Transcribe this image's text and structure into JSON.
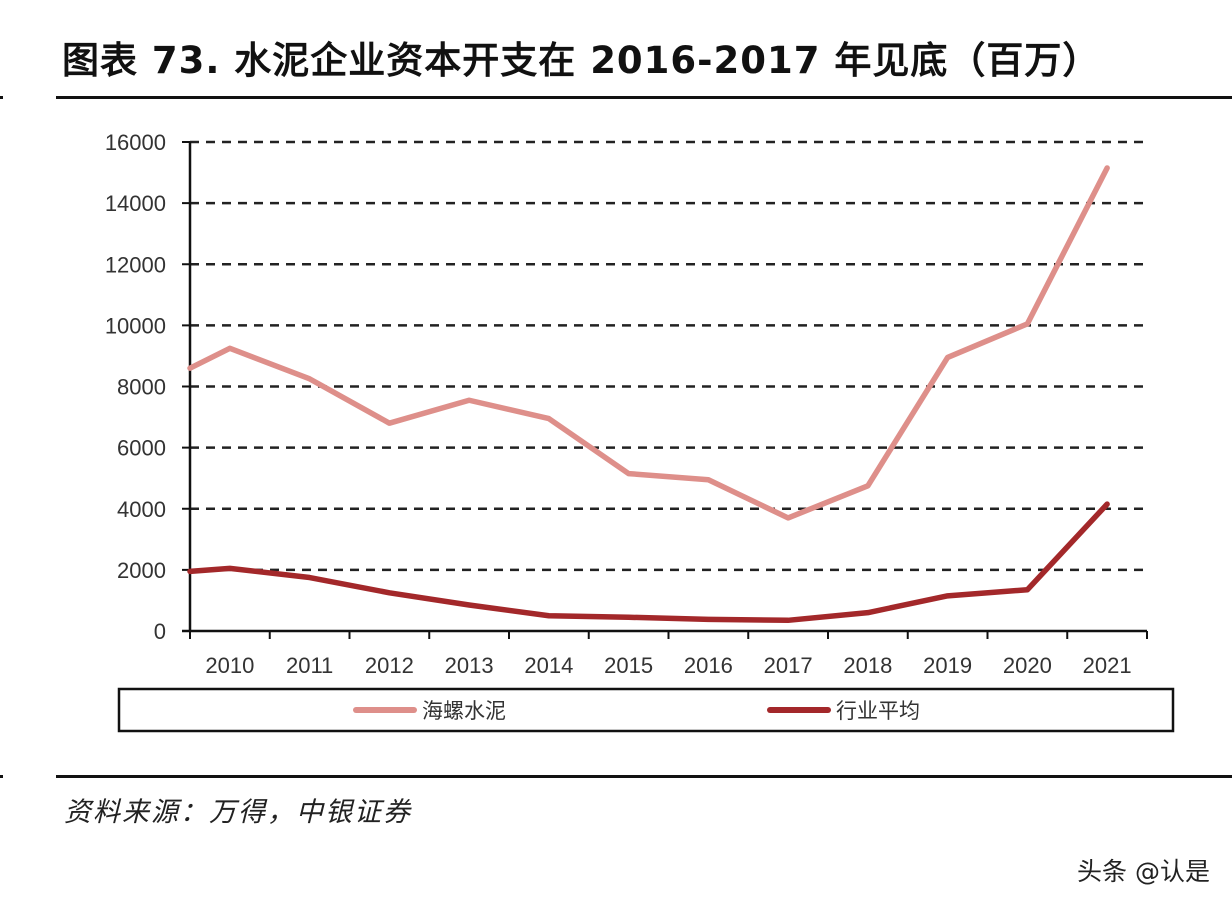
{
  "header": {
    "title": "图表 73. 水泥企业资本开支在 2016-2017 年见底（百万）"
  },
  "footer": {
    "source": "资料来源：万得，中银证券",
    "watermark": "头条 @认是"
  },
  "colors": {
    "series_1": "#de8f8a",
    "series_2": "#a3282a",
    "grid": "#222222",
    "axis": "#111111"
  },
  "chart_data": {
    "type": "line",
    "title": "图表 73. 水泥企业资本开支在 2016-2017 年见底（百万）",
    "xlabel": "",
    "ylabel": "百万",
    "categories": [
      "2010",
      "2011",
      "2012",
      "2013",
      "2014",
      "2015",
      "2016",
      "2017",
      "2018",
      "2019",
      "2020",
      "2021"
    ],
    "ylim": [
      0,
      16000
    ],
    "yticks": [
      0,
      2000,
      4000,
      6000,
      8000,
      10000,
      12000,
      14000,
      16000
    ],
    "grid": "horizontal dashed",
    "legend_position": "bottom (boxed)",
    "start_values": {
      "海螺水泥": 8600,
      "行业平均": 1950
    },
    "series": [
      {
        "name": "海螺水泥",
        "color": "#de8f8a",
        "values": [
          9250,
          8250,
          6800,
          7550,
          6950,
          5150,
          4950,
          3700,
          4750,
          8950,
          10050,
          15150
        ]
      },
      {
        "name": "行业平均",
        "color": "#a3282a",
        "values": [
          2050,
          1750,
          1250,
          850,
          500,
          450,
          380,
          350,
          600,
          1150,
          1350,
          4150
        ]
      }
    ]
  }
}
